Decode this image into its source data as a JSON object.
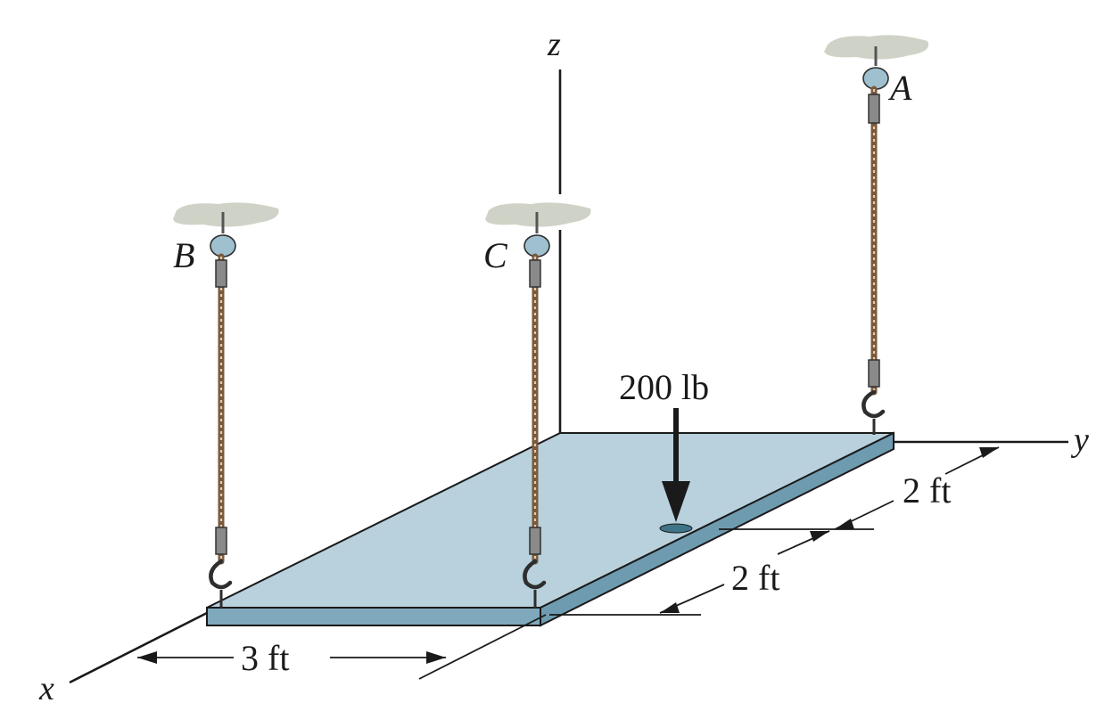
{
  "axes": {
    "x": "x",
    "y": "y",
    "z": "z"
  },
  "points": {
    "A": "A",
    "B": "B",
    "C": "C"
  },
  "load": {
    "label": "200 lb"
  },
  "dimensions": {
    "x_span": "3 ft",
    "y_span_near": "2 ft",
    "y_span_far": "2 ft"
  },
  "colors": {
    "plate_top": "#b8d1dc",
    "plate_edge": "#7fa8bc",
    "rope": "#b08a62",
    "ceiling": "#cfd3c7",
    "ring": "#9fc0ce"
  }
}
